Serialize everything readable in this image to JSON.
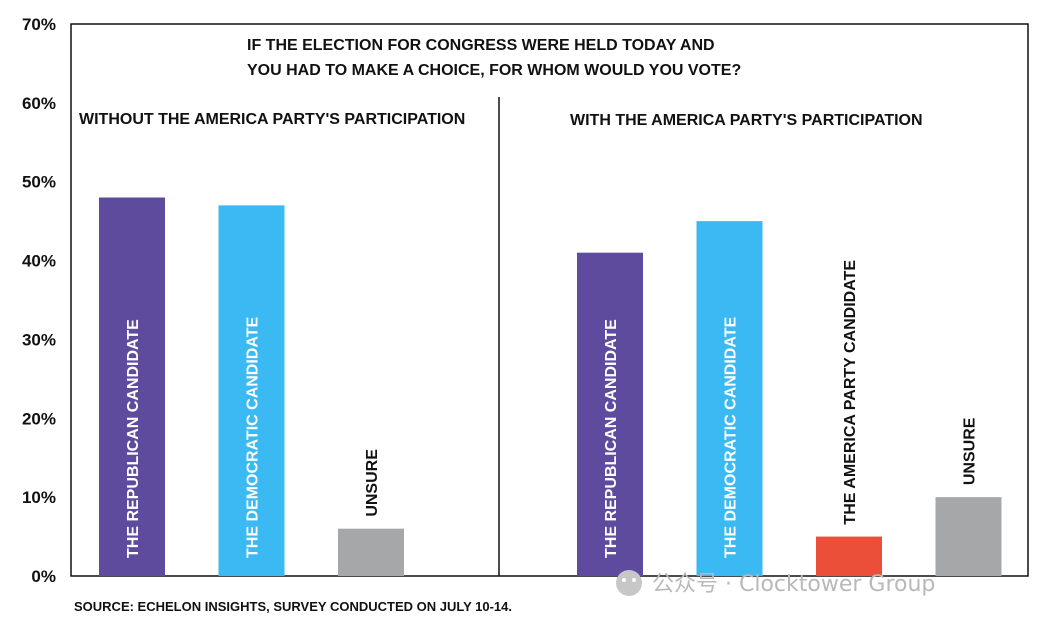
{
  "chart_data": {
    "type": "bar",
    "title_lines": [
      "IF THE ELECTION FOR CONGRESS WERE HELD TODAY AND",
      "YOU HAD TO MAKE A CHOICE, FOR WHOM WOULD YOU VOTE?"
    ],
    "ylim": [
      0,
      70
    ],
    "yticks": [
      "0%",
      "10%",
      "20%",
      "30%",
      "40%",
      "50%",
      "60%",
      "70%"
    ],
    "grid": false,
    "panels": [
      {
        "label": "WITHOUT THE AMERICA PARTY'S PARTICIPATION",
        "bars": [
          {
            "category": "THE REPUBLICAN CANDIDATE",
            "value": 48,
            "color": "#5e4b9e",
            "label_color": "#ffffff",
            "label_inside": true
          },
          {
            "category": "THE DEMOCRATIC CANDIDATE",
            "value": 47,
            "color": "#3bb9f2",
            "label_color": "#ffffff",
            "label_inside": true
          },
          {
            "category": "UNSURE",
            "value": 6,
            "color": "#a6a7a9",
            "label_color": "#111111",
            "label_inside": false
          }
        ]
      },
      {
        "label": "WITH THE AMERICA PARTY'S PARTICIPATION",
        "bars": [
          {
            "category": "THE REPUBLICAN CANDIDATE",
            "value": 41,
            "color": "#5e4b9e",
            "label_color": "#ffffff",
            "label_inside": true
          },
          {
            "category": "THE DEMOCRATIC CANDIDATE",
            "value": 45,
            "color": "#3bb9f2",
            "label_color": "#ffffff",
            "label_inside": true
          },
          {
            "category": "THE AMERICA PARTY CANDIDATE",
            "value": 5,
            "color": "#ec4f39",
            "label_color": "#111111",
            "label_inside": false
          },
          {
            "category": "UNSURE",
            "value": 10,
            "color": "#a6a7a9",
            "label_color": "#111111",
            "label_inside": false
          }
        ]
      }
    ]
  },
  "source": "SOURCE: ECHELON INSIGHTS, SURVEY CONDUCTED ON JULY 10-14.",
  "watermark": "公众号 · Clocktower Group"
}
